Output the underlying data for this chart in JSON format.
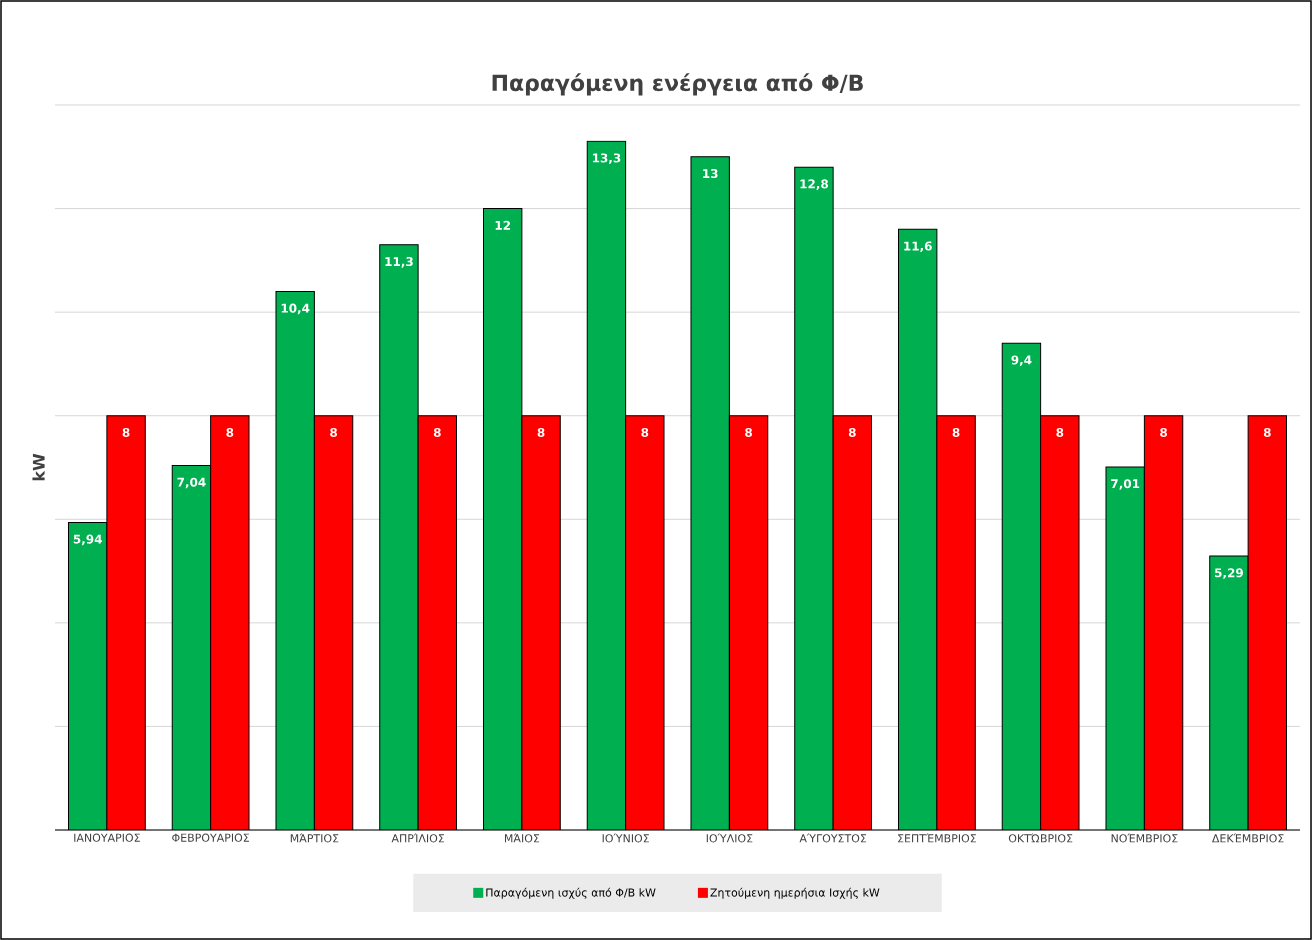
{
  "chart_data": {
    "type": "bar",
    "title": "Παραγόμενη ενέργεια από Φ/Β",
    "ylabel": "kW",
    "categories": [
      "ΙΑΝΟΥΑΡΙΟΣ",
      "ΦΕΒΡΟΥΑΡΙΟΣ",
      "ΜΆΡΤΙΟΣ",
      "ΑΠΡΊΛΙΟΣ",
      "ΜΆΙΟΣ",
      "ΙΟΎΝΙΟΣ",
      "ΙΟΎΛΙΟΣ",
      "ΑΎΓΟΥΣΤΟΣ",
      "ΣΕΠΤΈΜΒΡΙΟΣ",
      "ΟΚΤΏΒΡΙΟΣ",
      "ΝΟΈΜΒΡΙΟΣ",
      "ΔΕΚΈΜΒΡΙΟΣ"
    ],
    "series": [
      {
        "name": "Παραγόμενη ισχύς από Φ/Β kW",
        "color": "#00b050",
        "values": [
          5.94,
          7.04,
          10.4,
          11.3,
          12,
          13.3,
          13,
          12.8,
          11.6,
          9.4,
          7.01,
          5.29
        ],
        "value_labels": [
          "5,94",
          "7,04",
          "10,4",
          "11,3",
          "12",
          "13,3",
          "13",
          "12,8",
          "11,6",
          "9,4",
          "7,01",
          "5,29"
        ]
      },
      {
        "name": "Ζητούμενη ημερήσια Ισχής kW",
        "color": "#ff0000",
        "values": [
          8,
          8,
          8,
          8,
          8,
          8,
          8,
          8,
          8,
          8,
          8,
          8
        ],
        "value_labels": [
          "8",
          "8",
          "8",
          "8",
          "8",
          "8",
          "8",
          "8",
          "8",
          "8",
          "8",
          "8"
        ]
      }
    ],
    "ylim": [
      0,
      14
    ],
    "yticks": [
      {
        "value": 0,
        "label": null
      },
      {
        "value": 2,
        "label": null
      },
      {
        "value": 4,
        "label": null
      },
      {
        "value": 6,
        "label": null
      },
      {
        "value": 8,
        "label": null
      },
      {
        "value": 10,
        "label": null
      },
      {
        "value": 12,
        "label": null
      },
      {
        "value": 14,
        "label": null
      }
    ],
    "tick_labels": "x",
    "grid": "y",
    "legend": "bottom"
  }
}
